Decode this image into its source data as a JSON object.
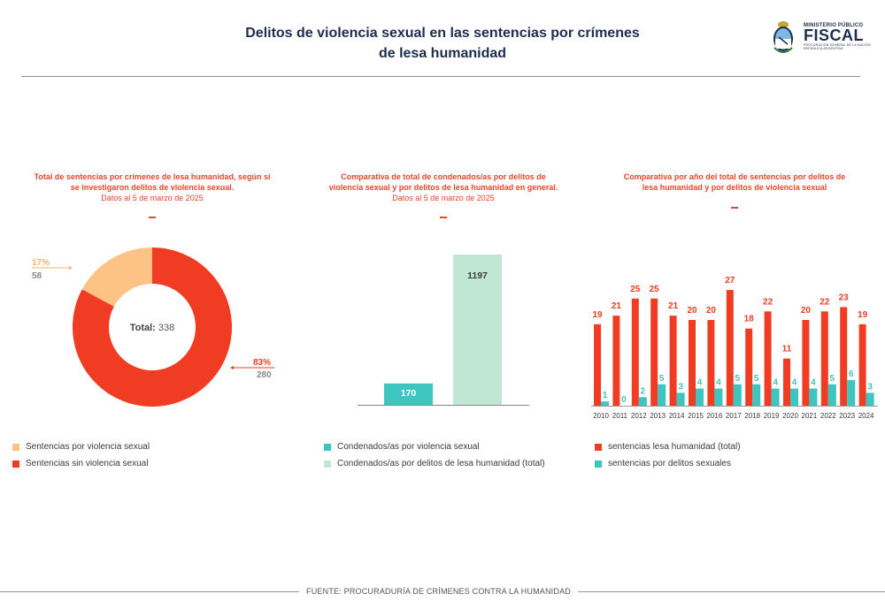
{
  "header": {
    "title_line1": "Delitos de violencia sexual en las sentencias por crímenes",
    "title_line2": "de lesa humanidad"
  },
  "logo": {
    "line1": "MINISTERIO PÚBLICO",
    "line2": "FISCAL",
    "line3": "PROCURACIÓN GENERAL DE LA NACIÓN",
    "line4": "REPÚBLICA ARGENTINA"
  },
  "colors": {
    "red": "#f03c23",
    "peach": "#fdc286",
    "teal": "#3ec5c0",
    "mint": "#bfe7d3",
    "title_red": "#e8452c",
    "navy": "#1d2d4e"
  },
  "footer": {
    "source": "FUENTE: PROCURADURÍA DE CRÍMENES CONTRA LA HUMANIDAD"
  },
  "chart_data": [
    {
      "type": "pie",
      "variant": "donut",
      "title_line1": "Total de sentencias por crímenes de lesa humanidad, según si",
      "title_line2": "se investigaron delitos de violencia sexual.",
      "subtitle": "Datos al 5 de marzo de 2025",
      "center_label": "Total:",
      "center_value": "338",
      "slices": [
        {
          "name": "Sentencias por violencia sexual",
          "value": 58,
          "percent_label": "17%"
        },
        {
          "name": "Sentencias sin violencia sexual",
          "value": 280,
          "percent_label": "83%"
        }
      ],
      "legend": [
        "Sentencias por violencia sexual",
        "Sentencias sin violencia sexual"
      ]
    },
    {
      "type": "bar",
      "title_line1": "Comparativa de total de condenados/as por delitos de",
      "title_line2": "violencia sexual y por delitos de lesa humanidad en general.",
      "subtitle": "Datos al 5 de marzo de 2025",
      "categories": [
        "Condenados/as por violencia sexual",
        "Condenados/as por delitos de lesa humanidad (total)"
      ],
      "values": [
        170,
        1197
      ],
      "ylim": [
        0,
        1197
      ],
      "legend": [
        "Condenados/as por violencia sexual",
        "Condenados/as por delitos de lesa humanidad (total)"
      ]
    },
    {
      "type": "bar",
      "title_line1": "Comparativa por año del total de sentencias por delitos de",
      "title_line2": "lesa humanidad y por delitos de violencia sexual",
      "categories": [
        "2010",
        "2011",
        "2012",
        "2013",
        "2014",
        "2015",
        "2016",
        "2017",
        "2018",
        "2019",
        "2020",
        "2021",
        "2022",
        "2023",
        "2024"
      ],
      "series": [
        {
          "name": "sentencias lesa humanidad (total)",
          "values": [
            19,
            21,
            25,
            25,
            21,
            20,
            20,
            27,
            18,
            22,
            11,
            20,
            22,
            23,
            19
          ]
        },
        {
          "name": "sentencias por delitos sexuales",
          "values": [
            1,
            0,
            2,
            5,
            3,
            4,
            4,
            5,
            5,
            4,
            4,
            4,
            5,
            6,
            3
          ]
        }
      ],
      "ylim": [
        0,
        27
      ],
      "legend": [
        "sentencias lesa humanidad (total)",
        "sentencias por delitos sexuales"
      ]
    }
  ]
}
